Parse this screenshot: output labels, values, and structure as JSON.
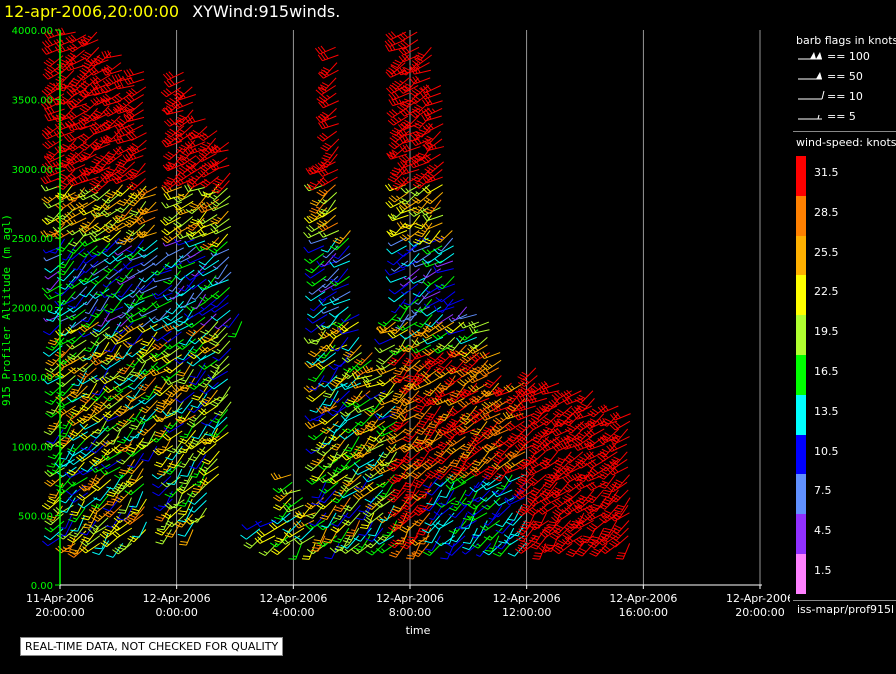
{
  "title": {
    "date": "12-apr-2006,20:00:00",
    "name": "XYWind:915winds."
  },
  "chart_data": {
    "type": "scatter",
    "subtype": "wind-barb",
    "ylabel": "915 Profiler Altitude (m agl)",
    "xlabel": "time",
    "ylim": [
      0,
      4000
    ],
    "y_ticks": [
      "0.00",
      "500.00",
      "1000.00",
      "1500.00",
      "2000.00",
      "2500.00",
      "3000.00",
      "3500.00",
      "4000.00"
    ],
    "x_ticks": [
      {
        "line1": "11-Apr-2006",
        "line2": "20:00:00"
      },
      {
        "line1": "12-Apr-2006",
        "line2": "0:00:00"
      },
      {
        "line1": "12-Apr-2006",
        "line2": "4:00:00"
      },
      {
        "line1": "12-Apr-2006",
        "line2": "8:00:00"
      },
      {
        "line1": "12-Apr-2006",
        "line2": "12:00:00"
      },
      {
        "line1": "12-Apr-2006",
        "line2": "16:00:00"
      },
      {
        "line1": "12-Apr-2006",
        "line2": "20:00:00"
      }
    ],
    "grid": true,
    "columns": [
      {
        "hour": 0.1,
        "ytop": 4000,
        "ybot": 350
      },
      {
        "hour": 0.5,
        "ytop": 4000,
        "ybot": 300
      },
      {
        "hour": 0.9,
        "ytop": 4000,
        "ybot": 280
      },
      {
        "hour": 1.3,
        "ytop": 4000,
        "ybot": 300
      },
      {
        "hour": 1.7,
        "ytop": 3850,
        "ybot": 320
      },
      {
        "hour": 2.1,
        "ytop": 3850,
        "ybot": 300
      },
      {
        "hour": 2.5,
        "ytop": 3700,
        "ybot": 300
      },
      {
        "hour": 2.9,
        "ytop": 3700,
        "ybot": 400
      },
      {
        "hour": 3.3,
        "ytop": 2900,
        "ybot": 1000
      },
      {
        "hour": 3.8,
        "ytop": 2400,
        "ybot": 400
      },
      {
        "hour": 4.2,
        "ytop": 3700,
        "ybot": 450
      },
      {
        "hour": 4.6,
        "ytop": 3600,
        "ybot": 400
      },
      {
        "hour": 5.0,
        "ytop": 3400,
        "ybot": 500
      },
      {
        "hour": 5.4,
        "ytop": 3300,
        "ybot": 800
      },
      {
        "hour": 5.8,
        "ytop": 3200,
        "ybot": 1100
      },
      {
        "hour": 6.2,
        "ytop": 2000,
        "ybot": 1900
      },
      {
        "hour": 6.9,
        "ytop": 500,
        "ybot": 350
      },
      {
        "hour": 7.4,
        "ytop": 500,
        "ybot": 300
      },
      {
        "hour": 7.9,
        "ytop": 800,
        "ybot": 300
      },
      {
        "hour": 8.3,
        "ytop": 700,
        "ybot": 300
      },
      {
        "hour": 8.7,
        "ytop": 600,
        "ybot": 300
      },
      {
        "hour": 9.1,
        "ytop": 3100,
        "ybot": 300
      },
      {
        "hour": 9.5,
        "ytop": 3900,
        "ybot": 300
      },
      {
        "hour": 9.9,
        "ytop": 2600,
        "ybot": 300
      },
      {
        "hour": 10.3,
        "ytop": 2000,
        "ybot": 300
      },
      {
        "hour": 10.7,
        "ytop": 1700,
        "ybot": 300
      },
      {
        "hour": 11.1,
        "ytop": 1600,
        "ybot": 300
      },
      {
        "hour": 11.5,
        "ytop": 2000,
        "ybot": 300
      },
      {
        "hour": 11.9,
        "ytop": 4000,
        "ybot": 300
      },
      {
        "hour": 12.3,
        "ytop": 4000,
        "ybot": 300
      },
      {
        "hour": 12.7,
        "ytop": 3900,
        "ybot": 300
      },
      {
        "hour": 13.1,
        "ytop": 3600,
        "ybot": 300
      },
      {
        "hour": 13.5,
        "ytop": 2600,
        "ybot": 300
      },
      {
        "hour": 13.9,
        "ytop": 2100,
        "ybot": 300
      },
      {
        "hour": 14.3,
        "ytop": 2000,
        "ybot": 300
      },
      {
        "hour": 14.7,
        "ytop": 1900,
        "ybot": 300
      },
      {
        "hour": 15.1,
        "ytop": 1700,
        "ybot": 300
      },
      {
        "hour": 15.5,
        "ytop": 1500,
        "ybot": 300
      },
      {
        "hour": 15.9,
        "ytop": 1500,
        "ybot": 300
      },
      {
        "hour": 16.3,
        "ytop": 1600,
        "ybot": 300
      },
      {
        "hour": 16.7,
        "ytop": 1500,
        "ybot": 300
      },
      {
        "hour": 17.1,
        "ytop": 1500,
        "ybot": 300
      },
      {
        "hour": 17.5,
        "ytop": 1450,
        "ybot": 300
      },
      {
        "hour": 17.9,
        "ytop": 1400,
        "ybot": 300
      },
      {
        "hour": 18.3,
        "ytop": 1400,
        "ybot": 300
      },
      {
        "hour": 18.7,
        "ytop": 1300,
        "ybot": 300
      },
      {
        "hour": 19.1,
        "ytop": 1300,
        "ybot": 300
      },
      {
        "hour": 19.5,
        "ytop": 1250,
        "ybot": 300
      }
    ]
  },
  "legend": {
    "barb_title": "barb flags in knots",
    "barb_keys": [
      {
        "label": "== 100",
        "kind": "pennant2"
      },
      {
        "label": "== 50",
        "kind": "pennant"
      },
      {
        "label": "== 10",
        "kind": "full"
      },
      {
        "label": "== 5",
        "kind": "half"
      }
    ],
    "speed_title": "wind-speed: knots",
    "speed_bins": [
      {
        "label": "31.5",
        "color": "#ff0000"
      },
      {
        "label": "28.5",
        "color": "#ff8000"
      },
      {
        "label": "25.5",
        "color": "#ffb000"
      },
      {
        "label": "22.5",
        "color": "#ffff00"
      },
      {
        "label": "19.5",
        "color": "#b0ff30"
      },
      {
        "label": "16.5",
        "color": "#00ff00"
      },
      {
        "label": "13.5",
        "color": "#00ffff"
      },
      {
        "label": "10.5",
        "color": "#0000ff"
      },
      {
        "label": "7.5",
        "color": "#6090ff"
      },
      {
        "label": "4.5",
        "color": "#9030ff"
      },
      {
        "label": "1.5",
        "color": "#ff80ff"
      }
    ],
    "source": "iss-mapr/prof915l"
  },
  "notice": "REAL-TIME DATA, NOT CHECKED FOR QUALITY"
}
